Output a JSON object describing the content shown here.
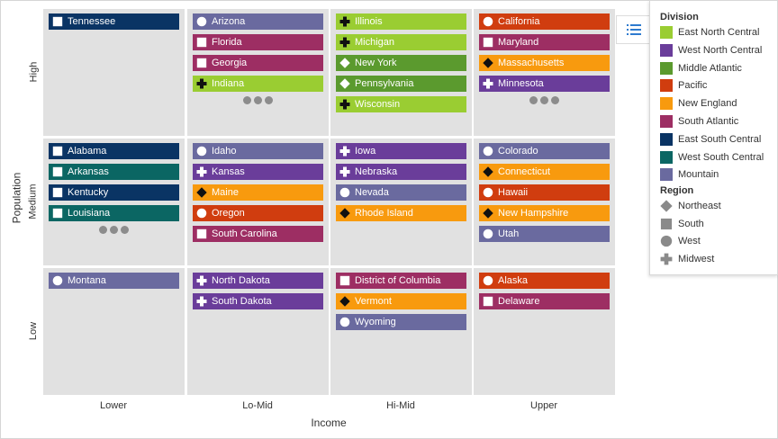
{
  "axes": {
    "y_title": "Population",
    "x_title": "Income",
    "rows": [
      "High",
      "Medium",
      "Low"
    ],
    "columns": [
      "Lower",
      "Lo-Mid",
      "Hi-Mid",
      "Upper"
    ]
  },
  "legend_toggle_icon": "list-icon",
  "legend": {
    "division_heading": "Division",
    "divisions": [
      {
        "name": "East North Central",
        "color": "#9acd32"
      },
      {
        "name": "West North Central",
        "color": "#6a3d9a"
      },
      {
        "name": "Middle Atlantic",
        "color": "#5b9a2e"
      },
      {
        "name": "Pacific",
        "color": "#d03d0f"
      },
      {
        "name": "New England",
        "color": "#f89a0e"
      },
      {
        "name": "South Atlantic",
        "color": "#9d2e63"
      },
      {
        "name": "East South Central",
        "color": "#0a3464"
      },
      {
        "name": "West South Central",
        "color": "#0b6663"
      },
      {
        "name": "Mountain",
        "color": "#6a6a9f"
      }
    ],
    "region_heading": "Region",
    "regions": [
      {
        "name": "Northeast",
        "shape": "diamond"
      },
      {
        "name": "South",
        "shape": "square"
      },
      {
        "name": "West",
        "shape": "circle"
      },
      {
        "name": "Midwest",
        "shape": "cross"
      }
    ]
  },
  "cells": [
    [
      {
        "items": [
          {
            "name": "Tennessee",
            "division": "East South Central",
            "region": "South"
          }
        ],
        "more": false
      },
      {
        "items": [
          {
            "name": "Arizona",
            "division": "Mountain",
            "region": "West"
          },
          {
            "name": "Florida",
            "division": "South Atlantic",
            "region": "South"
          },
          {
            "name": "Georgia",
            "division": "South Atlantic",
            "region": "South"
          },
          {
            "name": "Indiana",
            "division": "East North Central",
            "region": "Midwest"
          }
        ],
        "more": true
      },
      {
        "items": [
          {
            "name": "Illinois",
            "division": "East North Central",
            "region": "Midwest"
          },
          {
            "name": "Michigan",
            "division": "East North Central",
            "region": "Midwest"
          },
          {
            "name": "New York",
            "division": "Middle Atlantic",
            "region": "Northeast"
          },
          {
            "name": "Pennsylvania",
            "division": "Middle Atlantic",
            "region": "Northeast"
          },
          {
            "name": "Wisconsin",
            "division": "East North Central",
            "region": "Midwest"
          }
        ],
        "more": false
      },
      {
        "items": [
          {
            "name": "California",
            "division": "Pacific",
            "region": "West"
          },
          {
            "name": "Maryland",
            "division": "South Atlantic",
            "region": "South"
          },
          {
            "name": "Massachusetts",
            "division": "New England",
            "region": "Northeast"
          },
          {
            "name": "Minnesota",
            "division": "West North Central",
            "region": "Midwest"
          }
        ],
        "more": true
      }
    ],
    [
      {
        "items": [
          {
            "name": "Alabama",
            "division": "East South Central",
            "region": "South"
          },
          {
            "name": "Arkansas",
            "division": "West South Central",
            "region": "South"
          },
          {
            "name": "Kentucky",
            "division": "East South Central",
            "region": "South"
          },
          {
            "name": "Louisiana",
            "division": "West South Central",
            "region": "South"
          }
        ],
        "more": true
      },
      {
        "items": [
          {
            "name": "Idaho",
            "division": "Mountain",
            "region": "West"
          },
          {
            "name": "Kansas",
            "division": "West North Central",
            "region": "Midwest"
          },
          {
            "name": "Maine",
            "division": "New England",
            "region": "Northeast"
          },
          {
            "name": "Oregon",
            "division": "Pacific",
            "region": "West"
          },
          {
            "name": "South Carolina",
            "division": "South Atlantic",
            "region": "South"
          }
        ],
        "more": false
      },
      {
        "items": [
          {
            "name": "Iowa",
            "division": "West North Central",
            "region": "Midwest"
          },
          {
            "name": "Nebraska",
            "division": "West North Central",
            "region": "Midwest"
          },
          {
            "name": "Nevada",
            "division": "Mountain",
            "region": "West"
          },
          {
            "name": "Rhode Island",
            "division": "New England",
            "region": "Northeast"
          }
        ],
        "more": false
      },
      {
        "items": [
          {
            "name": "Colorado",
            "division": "Mountain",
            "region": "West"
          },
          {
            "name": "Connecticut",
            "division": "New England",
            "region": "Northeast"
          },
          {
            "name": "Hawaii",
            "division": "Pacific",
            "region": "West"
          },
          {
            "name": "New Hampshire",
            "division": "New England",
            "region": "Northeast"
          },
          {
            "name": "Utah",
            "division": "Mountain",
            "region": "West"
          }
        ],
        "more": false
      }
    ],
    [
      {
        "items": [
          {
            "name": "Montana",
            "division": "Mountain",
            "region": "West"
          }
        ],
        "more": false
      },
      {
        "items": [
          {
            "name": "North Dakota",
            "division": "West North Central",
            "region": "Midwest"
          },
          {
            "name": "South Dakota",
            "division": "West North Central",
            "region": "Midwest"
          }
        ],
        "more": false
      },
      {
        "items": [
          {
            "name": "District of Columbia",
            "division": "South Atlantic",
            "region": "South"
          },
          {
            "name": "Vermont",
            "division": "New England",
            "region": "Northeast"
          },
          {
            "name": "Wyoming",
            "division": "Mountain",
            "region": "West"
          }
        ],
        "more": false
      },
      {
        "items": [
          {
            "name": "Alaska",
            "division": "Pacific",
            "region": "West"
          },
          {
            "name": "Delaware",
            "division": "South Atlantic",
            "region": "South"
          }
        ],
        "more": false
      }
    ]
  ]
}
